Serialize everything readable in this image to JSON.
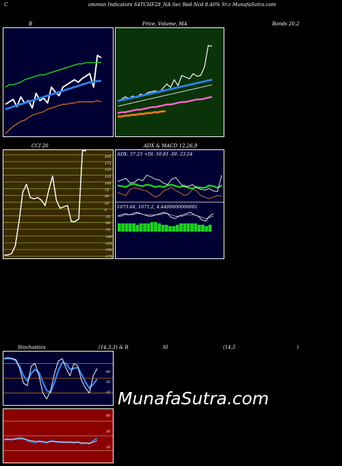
{
  "header": {
    "left": "C",
    "center": "ommon  Indicators S4TCHF28_NA Sec Red Ncd 8.40% Sr.z   MunafaSutra.com"
  },
  "labels": {
    "bb": "B",
    "price_ma": "Price,  Volume,  MA",
    "bands": "Bands 20,2",
    "cci": "CCI 20",
    "adx_macd": "ADX  & MACD 12,26,9",
    "adx_values": "ADX: 37.23  +DI: 50.81 -DI: 23.24",
    "macd_values": "1073.64,   1071.2,  4.4400000000001",
    "stoch": "Stochastics",
    "stoch_params": "(14,3,3) & R",
    "rsi": "SI",
    "rsi_params": "(14,5",
    "rsi_close": ")",
    "watermark": "MunafaSutra.com"
  },
  "colors": {
    "bb_bg": "#000033",
    "price_bg": "#0a330a",
    "cci_bg": "#3a2a00",
    "cci_grid": "#8aa03a",
    "macd_bg": "#000033",
    "stoch_bg": "#000033",
    "rsi_bg": "#8b0000",
    "white": "#ffffff",
    "blue": "#2f7fe8",
    "green": "#1fd01f",
    "orange": "#e07a1a",
    "pink": "#ff66cc"
  },
  "cci_ticks": [
    "205",
    "175",
    "150",
    "125",
    "100",
    "75",
    "50",
    "25",
    "0",
    "-25",
    "-50",
    "-75",
    "-100",
    "-125",
    "-150",
    "-175"
  ],
  "stoch_ticks": [
    "80",
    "50",
    "20"
  ],
  "rsi_ticks": [
    "80",
    "50",
    "20"
  ],
  "chart_data": [
    {
      "type": "line",
      "name": "bollinger",
      "series": [
        {
          "values": [
            24,
            26,
            28,
            22,
            30,
            25,
            27,
            21,
            33,
            27,
            29,
            25,
            38,
            34,
            31,
            38,
            40,
            42,
            44,
            42,
            45,
            47,
            49,
            38,
            64,
            62
          ]
        },
        {
          "values": [
            20,
            21,
            22,
            23,
            24,
            25,
            26,
            27,
            28,
            29,
            30,
            31,
            32,
            33,
            34,
            35,
            36,
            37,
            38,
            39,
            40,
            41,
            42,
            42,
            43,
            43
          ]
        },
        {
          "values": [
            38,
            40,
            40,
            41,
            42,
            44,
            45,
            46,
            47,
            48,
            48,
            49,
            50,
            51,
            52,
            53,
            54,
            55,
            56,
            57,
            57,
            58,
            58,
            58,
            58,
            58
          ]
        },
        {
          "values": [
            0,
            3,
            6,
            8,
            10,
            11,
            13,
            15,
            16,
            17,
            18,
            20,
            21,
            22,
            23,
            24,
            24,
            25,
            25,
            26,
            26,
            26,
            26,
            26,
            27,
            26
          ]
        }
      ]
    },
    {
      "type": "line",
      "name": "price-volume-ma",
      "series": [
        {
          "values": [
            30,
            32,
            35,
            33,
            36,
            34,
            38,
            37,
            40,
            41,
            42,
            40,
            45,
            50,
            46,
            55,
            48,
            60,
            58,
            56,
            62,
            59,
            60,
            70,
            95,
            94
          ]
        },
        {
          "values": [
            30,
            31,
            32,
            33,
            34,
            35,
            36,
            37,
            38,
            39,
            40,
            41,
            42,
            43,
            44,
            45,
            46,
            47,
            48,
            49,
            50,
            51,
            52,
            53,
            54,
            55
          ]
        },
        {
          "values": [
            24,
            25,
            26,
            27,
            28,
            29,
            30,
            31,
            32,
            33,
            34,
            35,
            36,
            37,
            38,
            39,
            40,
            41,
            42,
            43,
            44,
            45,
            46,
            47,
            48,
            49
          ]
        },
        {
          "values": [
            16,
            17,
            17,
            18,
            19,
            20,
            20,
            21,
            22,
            23,
            23,
            24,
            25,
            26,
            26,
            27,
            28,
            29,
            29,
            30,
            31,
            32,
            32,
            33,
            34,
            35
          ]
        },
        {
          "values": [
            12,
            12,
            13,
            13,
            14,
            14,
            15,
            15,
            16,
            16,
            17,
            17,
            18,
            18
          ]
        }
      ]
    },
    {
      "type": "line",
      "name": "cci",
      "ylim": [
        -175,
        205
      ],
      "series": [
        {
          "values": [
            -185,
            -185,
            -180,
            -150,
            -60,
            50,
            80,
            30,
            25,
            30,
            20,
            0,
            60,
            110,
            20,
            -10,
            -5,
            0,
            -60,
            -60,
            -50,
            205,
            205
          ]
        }
      ]
    },
    {
      "type": "line",
      "name": "adx",
      "series": [
        {
          "values": [
            37,
            36,
            35,
            38,
            39,
            37,
            36,
            38,
            37,
            35,
            36,
            35,
            37,
            38,
            36,
            35,
            37,
            34,
            33,
            35,
            34,
            34,
            37,
            36,
            34,
            37
          ]
        },
        {
          "values": [
            42,
            44,
            46,
            40,
            41,
            45,
            43,
            50,
            48,
            45,
            44,
            40,
            38,
            45,
            47,
            40,
            35,
            36,
            38,
            34,
            32,
            31,
            33,
            30,
            29,
            50
          ]
        },
        {
          "values": [
            28,
            26,
            24,
            32,
            34,
            33,
            31,
            30,
            26,
            22,
            24,
            30,
            32,
            35,
            30,
            28,
            24,
            26,
            32,
            30,
            24,
            22,
            20,
            22,
            24,
            23
          ]
        }
      ]
    },
    {
      "type": "bar",
      "name": "macd",
      "series": [
        {
          "values": [
            6,
            6,
            6,
            6,
            6,
            5,
            6,
            6,
            6,
            7,
            7,
            6,
            5,
            5,
            4,
            4,
            5,
            6,
            6,
            6,
            6,
            6,
            5,
            5,
            4,
            5
          ]
        }
      ]
    },
    {
      "type": "line",
      "name": "stochastics",
      "ylim": [
        0,
        100
      ],
      "series": [
        {
          "values": [
            90,
            92,
            90,
            88,
            70,
            40,
            35,
            75,
            80,
            55,
            20,
            8,
            25,
            60,
            85,
            90,
            70,
            55,
            80,
            75,
            45,
            30,
            20,
            55,
            70
          ]
        },
        {
          "values": [
            90,
            90,
            90,
            86,
            74,
            55,
            45,
            60,
            68,
            62,
            42,
            25,
            22,
            42,
            66,
            82,
            80,
            68,
            70,
            72,
            58,
            42,
            30,
            38,
            48
          ]
        }
      ]
    },
    {
      "type": "line",
      "name": "rsi",
      "ylim": [
        0,
        100
      ],
      "series": [
        {
          "values": [
            42,
            43,
            42,
            44,
            46,
            45,
            40,
            38,
            36,
            40,
            38,
            36,
            40,
            39,
            37,
            38,
            37,
            38,
            36,
            38,
            34,
            35,
            34,
            40,
            45
          ]
        },
        {
          "values": [
            43,
            43,
            43,
            44,
            44,
            44,
            42,
            40,
            39,
            38,
            38,
            37,
            38,
            38,
            38,
            37,
            37,
            37,
            37,
            37,
            36,
            36,
            35,
            37,
            40
          ]
        }
      ]
    }
  ]
}
